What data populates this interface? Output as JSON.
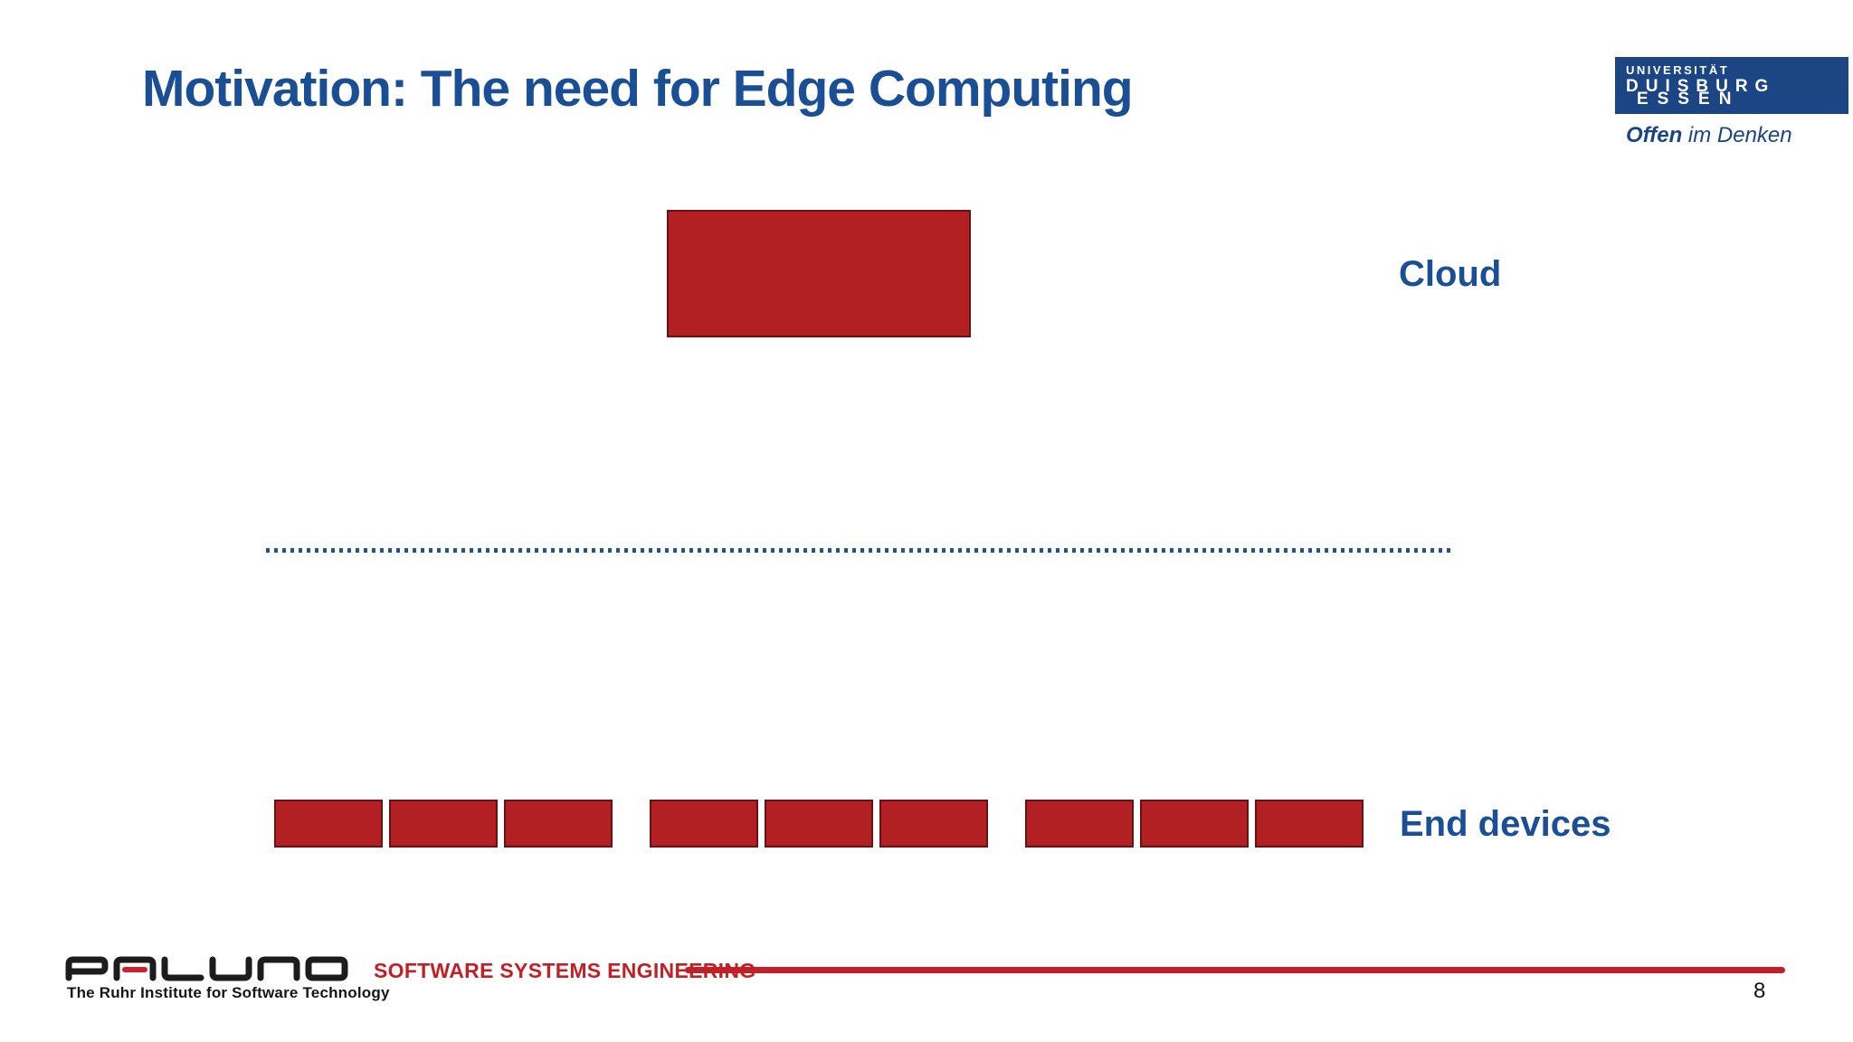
{
  "slide": {
    "title": "Motivation: The need for Edge Computing",
    "page_number": "8"
  },
  "university_logo": {
    "line1": "UNIVERSITÄT",
    "line2": "DUISBURG",
    "line3": "ESSEN",
    "claim_bold": "Offen",
    "claim_rest": " im Denken"
  },
  "diagram": {
    "cloud_label": "Cloud",
    "end_devices_label": "End devices",
    "cloud_box_count": 1,
    "end_device_groups": [
      3,
      3,
      3
    ]
  },
  "footer": {
    "logo_text": "PALUNO",
    "logo_tagline": "The Ruhr Institute for Software Technology",
    "department": "SOFTWARE SYSTEMS ENGINEERING"
  },
  "colors": {
    "title_blue": "#1A4F96",
    "logo_navy": "#1B4583",
    "box_red": "#B22023",
    "box_border": "#6B1113",
    "footer_red": "#C02026",
    "dotted_line_blue": "#205586",
    "paluno_black": "#1C1C1C",
    "paluno_red": "#CC2229"
  }
}
